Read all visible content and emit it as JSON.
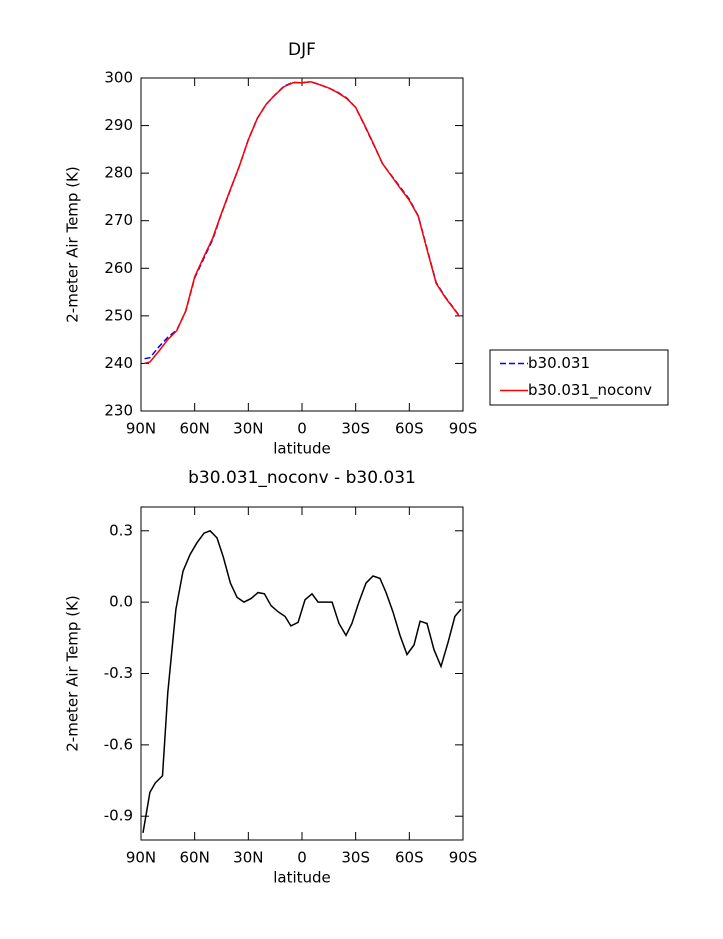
{
  "chart_data": [
    {
      "type": "line",
      "title": "DJF",
      "xlabel": "latitude",
      "ylabel": "2-meter Air Temp (K)",
      "x": [
        88,
        85,
        80,
        75,
        70,
        65,
        60,
        55,
        50,
        45,
        40,
        35,
        30,
        25,
        20,
        15,
        10,
        5,
        0,
        -5,
        -10,
        -15,
        -20,
        -25,
        -30,
        -35,
        -40,
        -45,
        -50,
        -55,
        -60,
        -65,
        -70,
        -75,
        -80,
        -85,
        -88
      ],
      "series": [
        {
          "name": "b30.031",
          "color": "#0000ff",
          "line_style": "dashed",
          "values": [
            241,
            241.2,
            243.5,
            245.5,
            247,
            251,
            258,
            262,
            266,
            271.5,
            276.5,
            281.5,
            287,
            291.5,
            294.5,
            296.5,
            298.3,
            299.1,
            299,
            299.2,
            298.6,
            297.9,
            297,
            295.8,
            293.8,
            290,
            286,
            282,
            279.5,
            277,
            274.5,
            271,
            264,
            257,
            254,
            251.5,
            250
          ]
        },
        {
          "name": "b30.031_noconv",
          "color": "#ff0000",
          "line_style": "solid",
          "values": [
            240,
            240.3,
            242.6,
            245,
            246.9,
            251,
            258.2,
            262.3,
            266.3,
            271.6,
            276.6,
            281.5,
            287,
            291.5,
            294.5,
            296.5,
            298.2,
            299,
            299,
            299.2,
            298.6,
            297.9,
            296.9,
            295.7,
            293.8,
            290.1,
            286.1,
            282,
            279.4,
            276.8,
            274.3,
            270.9,
            263.8,
            256.8,
            253.9,
            251.4,
            249.9
          ]
        }
      ],
      "xlim": [
        90,
        -90
      ],
      "xticks": [
        {
          "value": 90,
          "label": "90N"
        },
        {
          "value": 60,
          "label": "60N"
        },
        {
          "value": 30,
          "label": "30N"
        },
        0,
        {
          "value": -30,
          "label": "30S"
        },
        {
          "value": -60,
          "label": "60S"
        },
        {
          "value": -90,
          "label": "90S"
        }
      ],
      "ylim": [
        230,
        300
      ],
      "yticks": [
        230,
        240,
        250,
        260,
        270,
        280,
        290,
        300
      ],
      "legend": "outside-right"
    },
    {
      "type": "line",
      "title": "b30.031_noconv - b30.031",
      "xlabel": "latitude",
      "ylabel": "2-meter Air Temp (K)",
      "x": [
        88.9,
        85,
        82,
        78,
        75,
        70.5,
        66.5,
        62.6,
        58.7,
        54.8,
        51.4,
        47.5,
        44,
        40,
        36.3,
        32.4,
        28.5,
        24.6,
        21,
        17.3,
        13.4,
        9.5,
        6.2,
        2.2,
        -1.7,
        -5.6,
        -9,
        -12.8,
        -16.8,
        -20.7,
        -24.6,
        -27.9,
        -31.8,
        -35.8,
        -39.7,
        -43.6,
        -47,
        -50.8,
        -54.8,
        -58.7,
        -62.6,
        -66,
        -69.9,
        -73.8,
        -77.7,
        -81.6,
        -85.5,
        -88.9
      ],
      "values": [
        -0.97,
        -0.8,
        -0.76,
        -0.73,
        -0.38,
        -0.03,
        0.13,
        0.2,
        0.25,
        0.29,
        0.3,
        0.27,
        0.19,
        0.08,
        0.02,
        0.0,
        0.015,
        0.04,
        0.035,
        -0.015,
        -0.04,
        -0.06,
        -0.1,
        -0.085,
        0.01,
        0.035,
        0.0,
        0.0,
        0.0,
        -0.09,
        -0.14,
        -0.09,
        0.0,
        0.08,
        0.11,
        0.1,
        0.04,
        -0.04,
        -0.14,
        -0.22,
        -0.18,
        -0.08,
        -0.09,
        -0.2,
        -0.27,
        -0.17,
        -0.06,
        -0.03
      ],
      "color": "#000000",
      "xlim": [
        90,
        -90
      ],
      "xticks": [
        {
          "value": 90,
          "label": "90N"
        },
        {
          "value": 60,
          "label": "60N"
        },
        {
          "value": 30,
          "label": "30N"
        },
        0,
        {
          "value": -30,
          "label": "30S"
        },
        {
          "value": -60,
          "label": "60S"
        },
        {
          "value": -90,
          "label": "90S"
        }
      ],
      "ylim": [
        -1.0,
        0.4
      ],
      "yticks": [
        -0.9,
        -0.6,
        -0.3,
        {
          "value": 0,
          "label": "0.0"
        },
        0.3
      ]
    }
  ]
}
